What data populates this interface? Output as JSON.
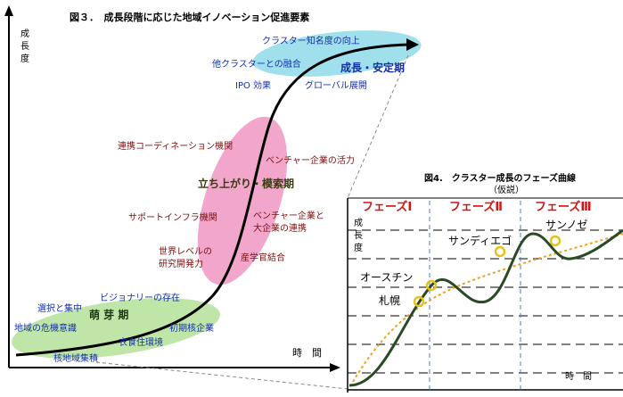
{
  "figure3": {
    "title": "図３．　成長段階に応じた地域イノベーション促進要素",
    "y_axis_label": "成長度",
    "x_axis_label": "時　間",
    "phases": {
      "early": "萌 芽 期",
      "rise": "立ち上がり・模索期",
      "stable": "成長・安定期"
    },
    "factors": {
      "cluster_awareness": "クラスター知名度の向上",
      "cluster_fusion": "他クラスターとの融合",
      "ipo": "IPO 効果",
      "global": "グローバル展開",
      "coordination": "連携コーディネーション機関",
      "venture_vitality": "ベンチャー企業の活力",
      "support_infra": "サポートインフラ機関",
      "venture_large": "ベンチャー企業と大企業の連携",
      "world_research": "世界レベルの研究開発力",
      "industry_academia": "産学官結合",
      "vision": "ビジョナリーの存在",
      "selection": "選択と集中",
      "crisis": "地域の危機意識",
      "nucleus": "初期核企業",
      "living": "衣食住環境",
      "core_tech": "核地域集積"
    }
  },
  "figure4": {
    "title": "図4.　クラスター成長のフェーズ曲線",
    "subtitle": "（仮説）",
    "y_axis_label": "成長度",
    "x_axis_label": "時　間",
    "phases": [
      "フェーズⅠ",
      "フェーズⅡ",
      "フェーズⅢ"
    ],
    "points": {
      "austin": "オースチン",
      "sapporo": "札幌",
      "sandiego": "サンディエゴ",
      "sanjose": "サンノゼ"
    }
  },
  "colors": {
    "curve": "#000000",
    "phase_curve": "#2a4a26",
    "trend_dashed": "#f0a020",
    "marker": "#e6c21a",
    "early_blob": "#bfe6a8",
    "rise_blob": "#f2a6cc",
    "stable_blob": "#9fe0ec",
    "phase_label": "#d21414",
    "vline": "#4a7bd0"
  }
}
